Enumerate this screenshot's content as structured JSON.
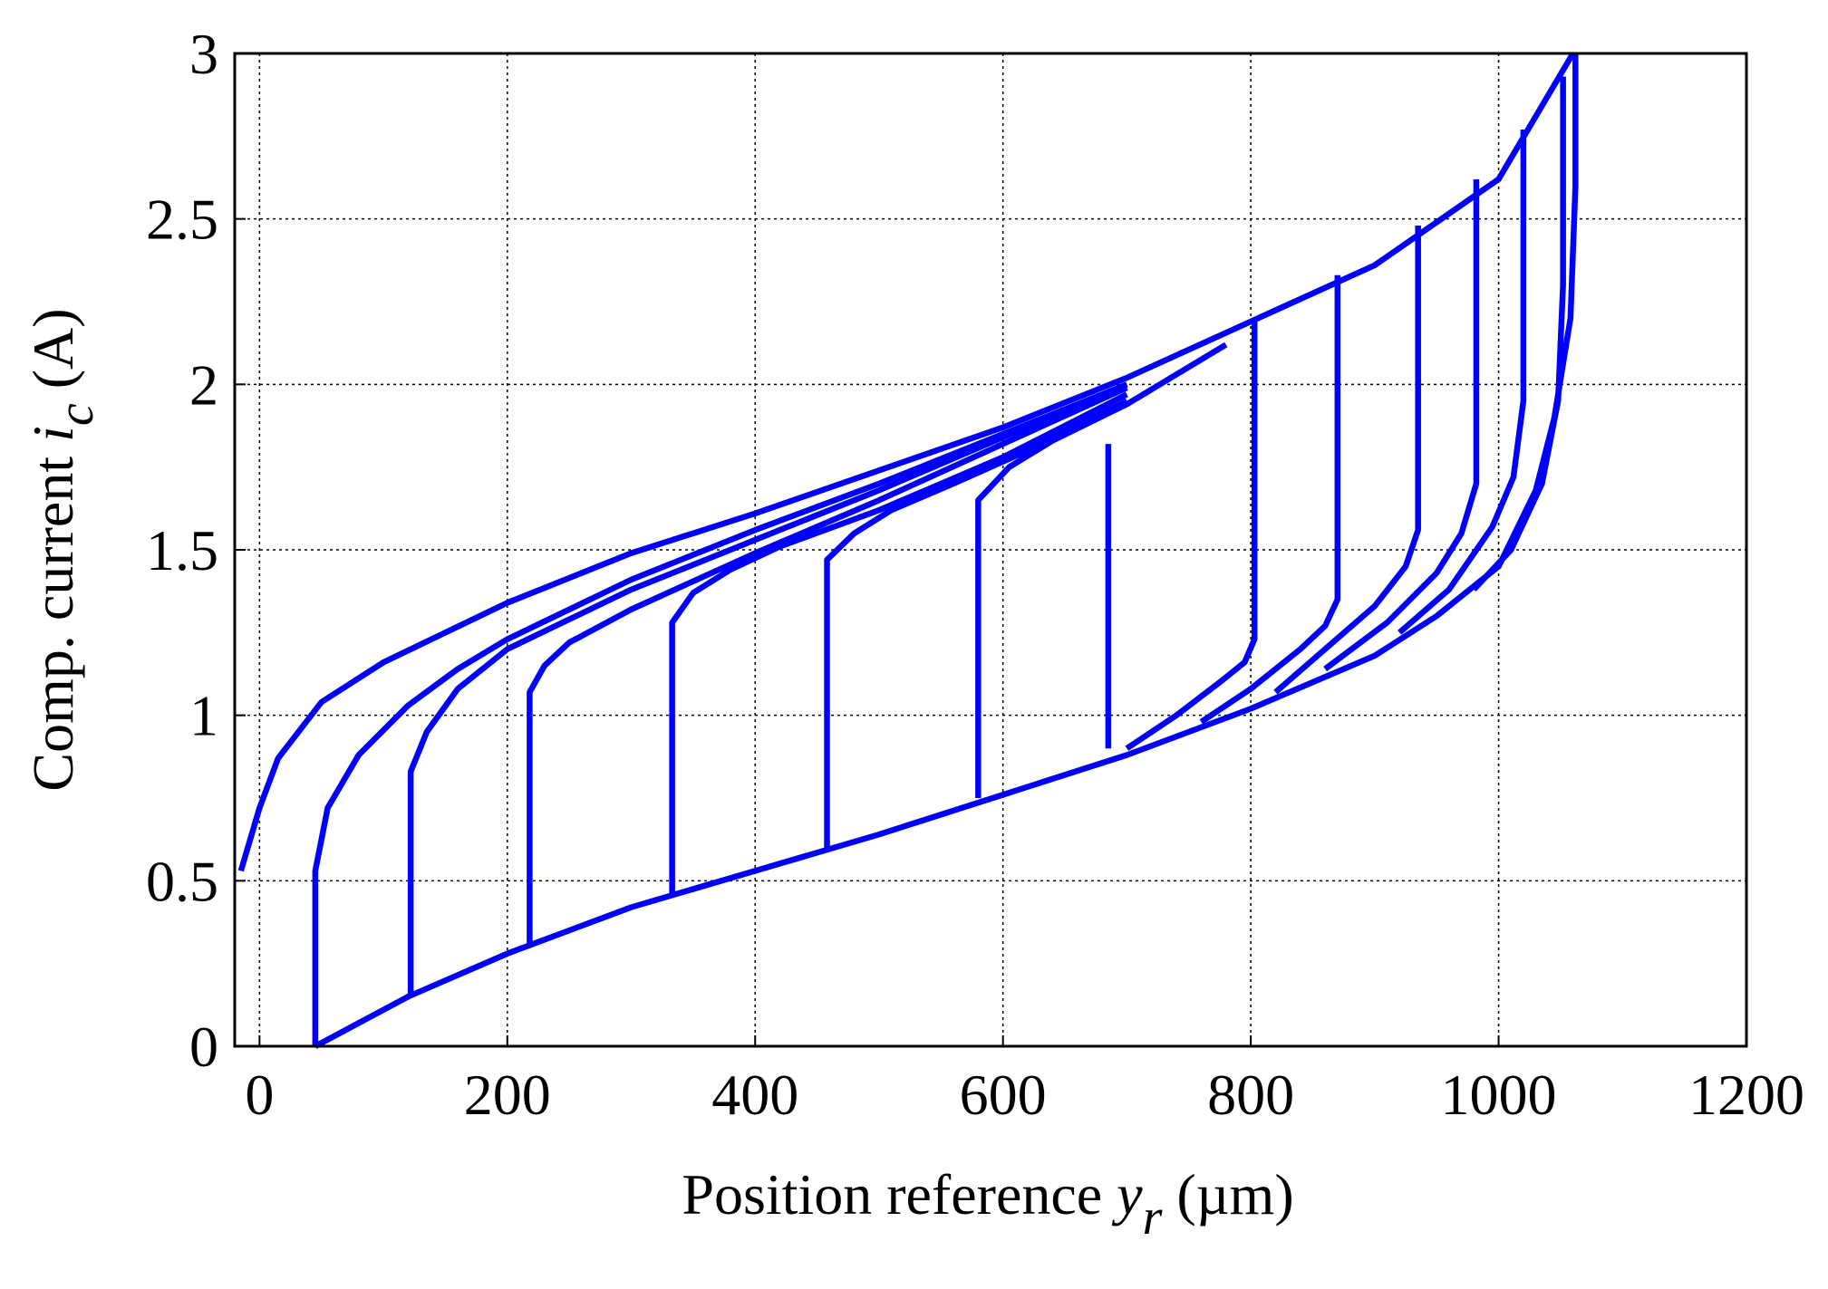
{
  "chart_data": {
    "type": "line",
    "xlabel": [
      "Position reference ",
      "y",
      "r",
      " (µm)"
    ],
    "ylabel": [
      "Comp. current ",
      "i",
      "c",
      " (A)"
    ],
    "xlim": [
      -20,
      1200
    ],
    "ylim": [
      0,
      3
    ],
    "xticks": [
      0,
      200,
      400,
      600,
      800,
      1000,
      1200
    ],
    "yticks": [
      0,
      0.5,
      1,
      1.5,
      2,
      2.5,
      3
    ],
    "grid": true,
    "series": [
      {
        "color": "#0000ff",
        "x": [
          -15,
          0,
          15,
          50,
          100,
          200,
          300,
          400,
          500,
          600,
          700,
          800,
          900,
          1000,
          1060
        ],
        "values": [
          0.53,
          0.72,
          0.87,
          1.04,
          1.16,
          1.34,
          1.49,
          1.61,
          1.74,
          1.87,
          2.02,
          2.19,
          2.36,
          2.62,
          3
        ]
      },
      {
        "color": "#0000ff",
        "x": [
          1062,
          1062,
          1058,
          1045,
          1030,
          1000,
          950,
          900,
          800,
          700,
          600,
          500,
          400,
          300,
          200,
          120,
          80,
          45
        ],
        "values": [
          3,
          2.6,
          2.2,
          1.9,
          1.68,
          1.45,
          1.3,
          1.18,
          1.02,
          0.88,
          0.76,
          0.64,
          0.53,
          0.42,
          0.28,
          0.15,
          0.07,
          0
        ]
      },
      {
        "color": "#0000ff",
        "x": [
          45,
          45,
          55,
          80,
          120,
          160,
          200,
          300,
          400,
          500,
          600,
          700
        ],
        "values": [
          0,
          0.53,
          0.72,
          0.88,
          1.03,
          1.14,
          1.23,
          1.41,
          1.56,
          1.7,
          1.85,
          2.0
        ]
      },
      {
        "color": "#0000ff",
        "x": [
          122,
          122,
          135,
          160,
          200,
          300,
          400,
          500,
          600,
          700
        ],
        "values": [
          0.15,
          0.83,
          0.95,
          1.08,
          1.2,
          1.38,
          1.53,
          1.68,
          1.84,
          2.0
        ]
      },
      {
        "color": "#0000ff",
        "x": [
          218,
          218,
          230,
          250,
          300,
          400,
          500,
          600,
          700
        ],
        "values": [
          0.3,
          1.07,
          1.15,
          1.22,
          1.32,
          1.49,
          1.65,
          1.82,
          1.99
        ]
      },
      {
        "color": "#0000ff",
        "x": [
          333,
          333,
          350,
          380,
          420,
          500,
          600,
          700
        ],
        "values": [
          0.46,
          1.28,
          1.37,
          1.44,
          1.51,
          1.62,
          1.78,
          1.97
        ]
      },
      {
        "color": "#0000ff",
        "x": [
          458,
          458,
          480,
          510,
          560,
          620,
          700
        ],
        "values": [
          0.6,
          1.47,
          1.55,
          1.62,
          1.7,
          1.8,
          1.95
        ]
      },
      {
        "color": "#0000ff",
        "x": [
          580,
          580,
          605,
          640,
          700,
          780
        ],
        "values": [
          0.75,
          1.65,
          1.75,
          1.83,
          1.94,
          2.12
        ]
      },
      {
        "color": "#0000ff",
        "x": [
          685,
          685
        ],
        "values": [
          0.9,
          1.82
        ]
      },
      {
        "color": "#0000ff",
        "x": [
          803,
          803,
          795,
          775,
          740,
          700
        ],
        "values": [
          2.2,
          1.23,
          1.16,
          1.1,
          1.0,
          0.9
        ]
      },
      {
        "color": "#0000ff",
        "x": [
          870,
          870,
          860,
          840,
          800,
          760
        ],
        "values": [
          2.33,
          1.35,
          1.27,
          1.2,
          1.08,
          0.98
        ]
      },
      {
        "color": "#0000ff",
        "x": [
          935,
          935,
          925,
          900,
          860,
          820
        ],
        "values": [
          2.48,
          1.56,
          1.45,
          1.33,
          1.2,
          1.07
        ]
      },
      {
        "color": "#0000ff",
        "x": [
          982,
          982,
          970,
          950,
          910,
          860
        ],
        "values": [
          2.62,
          1.7,
          1.55,
          1.43,
          1.28,
          1.14
        ]
      },
      {
        "color": "#0000ff",
        "x": [
          1020,
          1020,
          1012,
          995,
          960,
          920
        ],
        "values": [
          2.77,
          1.95,
          1.72,
          1.57,
          1.38,
          1.25
        ]
      },
      {
        "color": "#0000ff",
        "x": [
          1052,
          1052,
          1048,
          1035,
          1010,
          980
        ],
        "values": [
          2.93,
          2.3,
          1.95,
          1.7,
          1.5,
          1.38
        ]
      }
    ]
  }
}
